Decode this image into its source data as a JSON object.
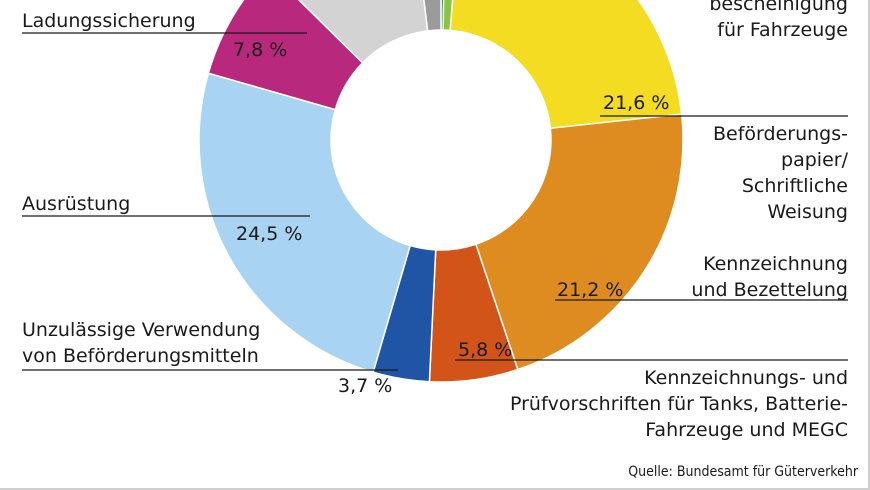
{
  "chart_data": {
    "type": "pie",
    "style": "donut",
    "slices": [
      {
        "label": "Fahrzeuge bescheinigung (partial)",
        "value": 0.3,
        "color": "#1d8a3c"
      },
      {
        "label": "",
        "value": 1.0,
        "color": "#8bc440"
      },
      {
        "label": "für Fahrzeuge",
        "value": 21.6,
        "color": "#f4dc22"
      },
      {
        "label": "Kennzeichnung und Bezettelung",
        "value": 21.2,
        "color": "#de8c1f"
      },
      {
        "label": "Kennzeichnungs- und Prüfvorschriften für Tanks, Batterie-Fahrzeuge und MEGC",
        "value": 5.8,
        "color": "#d25418"
      },
      {
        "label": "Unzulässige Verwendung von Beförderungsmitteln",
        "value": 3.7,
        "color": "#1f55a4"
      },
      {
        "label": "Ausrüstung",
        "value": 24.5,
        "color": "#a9d3f2"
      },
      {
        "label": "Ladungssicherung",
        "value": 7.8,
        "color": "#b8297d"
      },
      {
        "label": "",
        "value": 10.5,
        "color": "#d3d3d3"
      },
      {
        "label": "",
        "value": 1.9,
        "color": "#9b9b9b"
      }
    ]
  },
  "labels": {
    "ladung": "Ladungssicherung",
    "ladung_val": "7,8 %",
    "ausr": "Ausrüstung",
    "ausr_val": "24,5 %",
    "unz1": "Unzulässige Verwendung",
    "unz2": "von Beförderungsmitteln",
    "unz_val": "3,7 %",
    "besch1": "bescheinigung",
    "besch2": "für Fahrzeuge",
    "fz_val": "21,6 %",
    "bef1": "Beförderungs-",
    "bef2": "papier/",
    "bef3": "Schriftliche",
    "bef4": "Weisung",
    "kenn1": "Kennzeichnung",
    "kenn2": "und Bezettelung",
    "kenn_val": "21,2 %",
    "kv_val": "5,8 %",
    "kv1": "Kennzeichnungs- und",
    "kv2": "Prüfvorschriften für Tanks, Batterie-",
    "kv3": "Fahrzeuge und MEGC"
  },
  "source": "Quelle: Bundesamt für Güterverkehr"
}
